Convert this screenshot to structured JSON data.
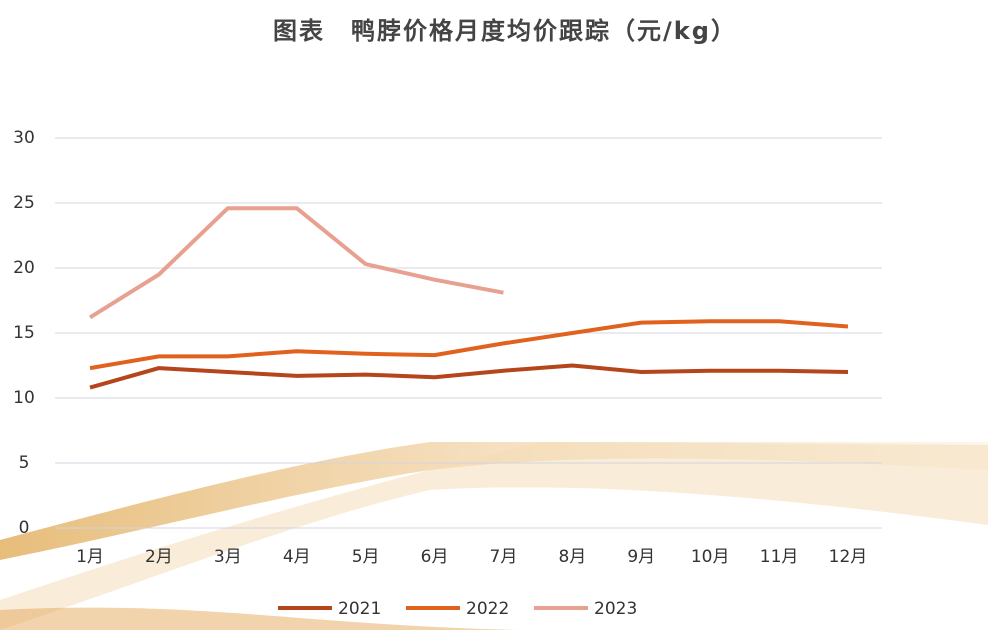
{
  "chart_data": {
    "type": "line",
    "title": "图表　鸭脖价格月度均价跟踪（元/kg）",
    "categories": [
      "1月",
      "2月",
      "3月",
      "4月",
      "5月",
      "6月",
      "7月",
      "8月",
      "9月",
      "10月",
      "11月",
      "12月"
    ],
    "series": [
      {
        "name": "2021",
        "color": "#b5451b",
        "values": [
          10.8,
          12.3,
          12.0,
          11.7,
          11.8,
          11.6,
          12.1,
          12.5,
          12.0,
          12.1,
          12.1,
          12.0
        ]
      },
      {
        "name": "2022",
        "color": "#e0621e",
        "values": [
          12.3,
          13.2,
          13.2,
          13.6,
          13.4,
          13.3,
          14.2,
          15.0,
          15.8,
          15.9,
          15.9,
          15.5
        ]
      },
      {
        "name": "2023",
        "color": "#e8a090",
        "values": [
          16.2,
          19.5,
          24.6,
          24.6,
          20.3,
          19.1,
          18.1,
          null,
          null,
          null,
          null,
          null
        ]
      }
    ],
    "ylim": [
      0,
      30
    ],
    "yticks": [
      0,
      5,
      10,
      15,
      20,
      25,
      30
    ],
    "grid": true
  }
}
